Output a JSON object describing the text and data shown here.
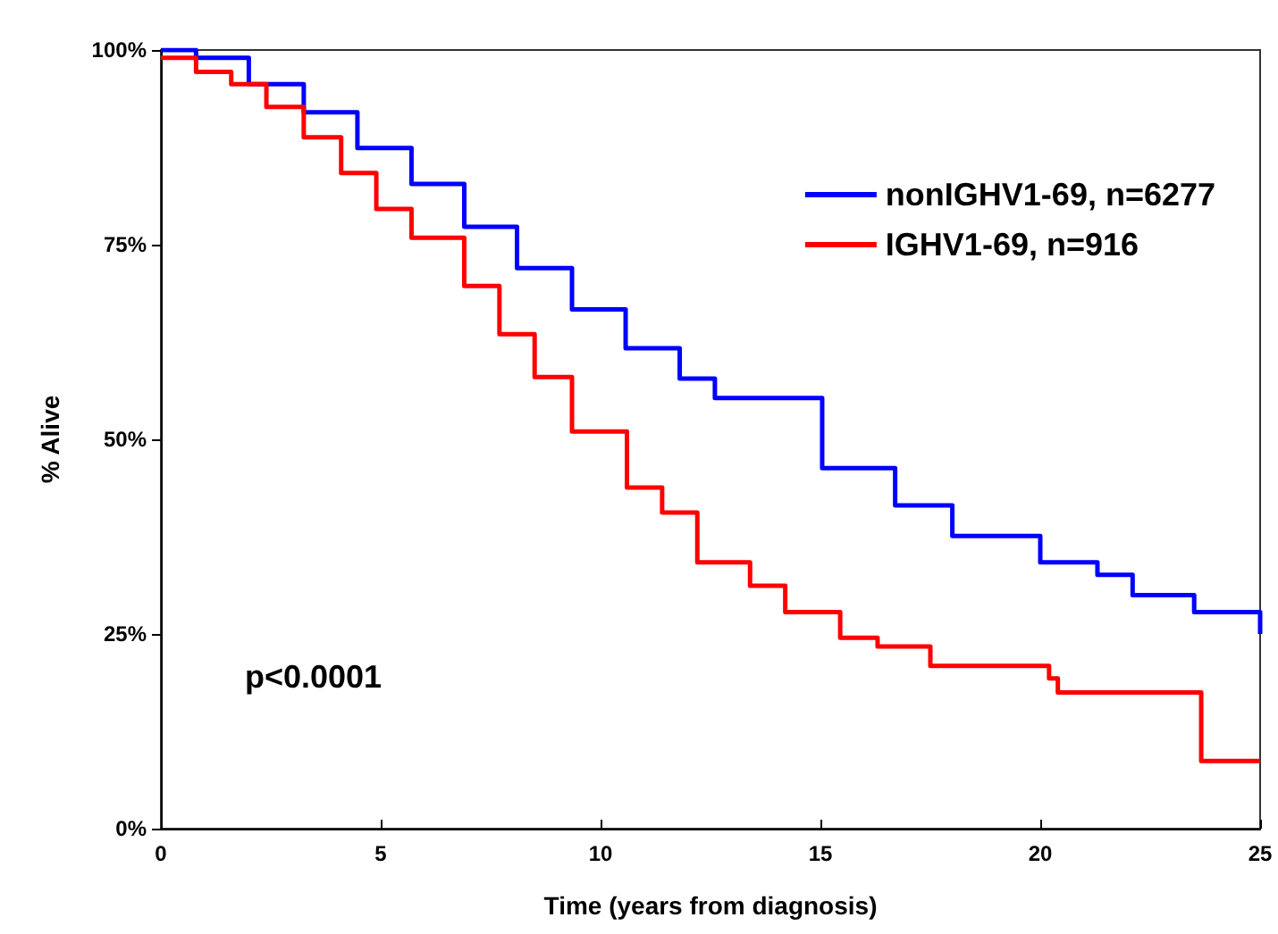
{
  "chart_data": {
    "type": "step",
    "xlabel": "Time (years from diagnosis)",
    "ylabel": "% Alive",
    "xlim": [
      0,
      25
    ],
    "xticks": [
      0,
      5,
      10,
      15,
      20,
      25
    ],
    "ylim": [
      0,
      100
    ],
    "yticks": [
      {
        "value": 0,
        "label": "0%"
      },
      {
        "value": 25,
        "label": "25%"
      },
      {
        "value": 50,
        "label": "50%"
      },
      {
        "value": 75,
        "label": "75%"
      },
      {
        "value": 100,
        "label": "100%"
      }
    ],
    "grid": false,
    "legend": "top right",
    "line_style": "solid",
    "annotations": [
      "p<0.0001"
    ],
    "series": [
      {
        "name": "nonIGHV1-69, n=6277",
        "color": "#0000ff",
        "x": [
          0,
          0.8,
          2.0,
          3.25,
          4.47,
          5.7,
          6.9,
          8.1,
          9.35,
          10.57,
          11.8,
          12.6,
          15.04,
          16.7,
          18.0,
          20.0,
          21.3,
          22.1,
          23.5,
          25
        ],
        "values": [
          100,
          99,
          95.6,
          92,
          87.4,
          82.8,
          77.3,
          72,
          66.7,
          61.7,
          57.8,
          55.3,
          46.3,
          41.5,
          37.6,
          34.2,
          32.6,
          30,
          27.8,
          25
        ]
      },
      {
        "name": "IGHV1-69, n=916",
        "color": "#ff0000",
        "x": [
          0,
          0.8,
          1.6,
          2.4,
          3.25,
          4.1,
          4.9,
          5.7,
          6.9,
          7.7,
          8.5,
          9.35,
          10.6,
          11.4,
          12.2,
          13.4,
          14.2,
          15.45,
          16.3,
          17.5,
          20.2,
          20.4,
          23.66,
          25
        ],
        "values": [
          99,
          97.2,
          95.6,
          92.7,
          88.8,
          84.2,
          79.6,
          75.9,
          69.7,
          63.5,
          58,
          51,
          43.8,
          40.6,
          34.2,
          31.2,
          27.8,
          24.5,
          23.4,
          20.9,
          19.3,
          17.5,
          8.7,
          8.7
        ]
      }
    ]
  }
}
